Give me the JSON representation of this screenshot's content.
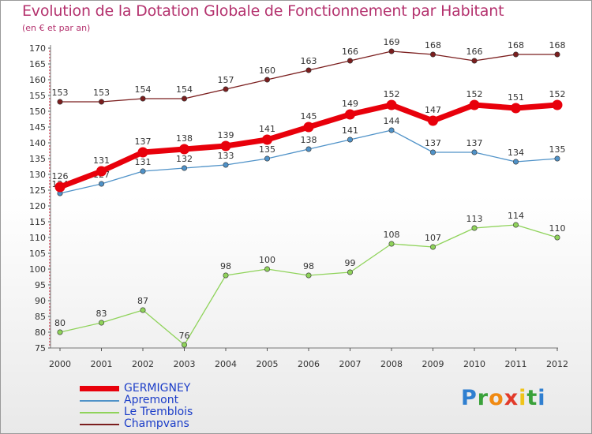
{
  "title": "Evolution de la Dotation Globale de Fonctionnement par Habitant",
  "subtitle": "(en € et par an)",
  "logo": {
    "text": "Proxiti",
    "letters": [
      "P",
      "r",
      "o",
      "x",
      "i",
      "t",
      "i"
    ],
    "letter_colors": [
      "#2f7fd0",
      "#3aa13a",
      "#f08a12",
      "#e23a2a",
      "#f0c419",
      "#3aa13a",
      "#2f7fd0"
    ]
  },
  "chart_data": {
    "type": "line",
    "title": "Evolution de la Dotation Globale de Fonctionnement par Habitant",
    "subtitle": "(en € et par an)",
    "xlabel": "",
    "ylabel": "",
    "x": [
      "2000",
      "2001",
      "2002",
      "2003",
      "2004",
      "2005",
      "2006",
      "2007",
      "2008",
      "2009",
      "2010",
      "2011",
      "2012"
    ],
    "ylim": [
      73,
      170
    ],
    "yticks": [
      75,
      80,
      85,
      90,
      95,
      100,
      105,
      110,
      115,
      120,
      125,
      130,
      135,
      140,
      145,
      150,
      155,
      160,
      165,
      170
    ],
    "grid": false,
    "legend_position": "bottom-left",
    "series": [
      {
        "name": "GERMIGNEY",
        "color": "#e8000b",
        "emphasis": true,
        "values": [
          126,
          131,
          137,
          138,
          139,
          141,
          145,
          149,
          152,
          147,
          152,
          151,
          152
        ]
      },
      {
        "name": "Apremont",
        "color": "#4f92c8",
        "emphasis": false,
        "values": [
          124,
          127,
          131,
          132,
          133,
          135,
          138,
          141,
          144,
          137,
          137,
          134,
          135
        ]
      },
      {
        "name": "Le Tremblois",
        "color": "#8fd35a",
        "emphasis": false,
        "values": [
          80,
          83,
          87,
          76,
          98,
          100,
          98,
          99,
          108,
          107,
          113,
          114,
          110
        ]
      },
      {
        "name": "Champvans",
        "color": "#7b1e1e",
        "emphasis": false,
        "values": [
          153,
          153,
          154,
          154,
          157,
          160,
          163,
          166,
          169,
          168,
          166,
          168,
          168
        ]
      }
    ]
  }
}
